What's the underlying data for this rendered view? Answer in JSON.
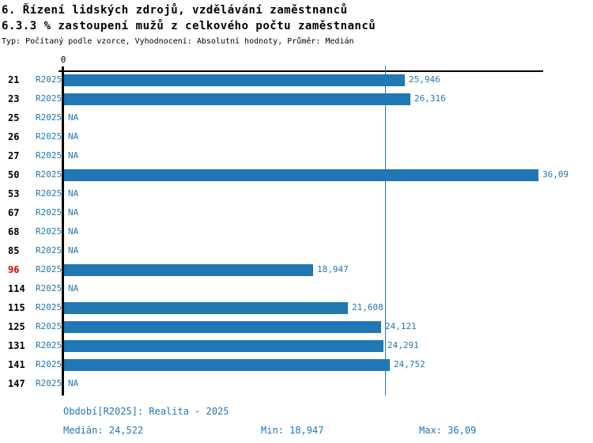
{
  "header": {
    "title": "6. Řízení lidských zdrojů, vzdělávání zaměstnanců",
    "subtitle": "6.3.3 % zastoupení mužů z celkového počtu zaměstnanců",
    "meta": "Typ: Počítaný podle vzorce, Vyhodnocení: Absolutní hodnoty, Průměr: Medián"
  },
  "chart_data": {
    "type": "bar",
    "orientation": "horizontal",
    "xlim": [
      0,
      36.09
    ],
    "x_tick_labels": [
      "0"
    ],
    "grid": false,
    "median_value": 24.522,
    "na_text": "NA",
    "series_name": "R2025",
    "bar_color": "#1f77b4",
    "text_blue": "#1f77b4",
    "highlight_color": "#dd0000",
    "rows": [
      {
        "id": "21",
        "period": "R2025",
        "value": 25.946,
        "label": "25,946",
        "highlight": false
      },
      {
        "id": "23",
        "period": "R2025",
        "value": 26.316,
        "label": "26,316",
        "highlight": false
      },
      {
        "id": "25",
        "period": "R2025",
        "value": null,
        "label": "NA",
        "highlight": false
      },
      {
        "id": "26",
        "period": "R2025",
        "value": null,
        "label": "NA",
        "highlight": false
      },
      {
        "id": "27",
        "period": "R2025",
        "value": null,
        "label": "NA",
        "highlight": false
      },
      {
        "id": "50",
        "period": "R2025",
        "value": 36.09,
        "label": "36,09",
        "highlight": false
      },
      {
        "id": "53",
        "period": "R2025",
        "value": null,
        "label": "NA",
        "highlight": false
      },
      {
        "id": "67",
        "period": "R2025",
        "value": null,
        "label": "NA",
        "highlight": false
      },
      {
        "id": "68",
        "period": "R2025",
        "value": null,
        "label": "NA",
        "highlight": false
      },
      {
        "id": "85",
        "period": "R2025",
        "value": null,
        "label": "NA",
        "highlight": false
      },
      {
        "id": "96",
        "period": "R2025",
        "value": 18.947,
        "label": "18,947",
        "highlight": true
      },
      {
        "id": "114",
        "period": "R2025",
        "value": null,
        "label": "NA",
        "highlight": false
      },
      {
        "id": "115",
        "period": "R2025",
        "value": 21.608,
        "label": "21,608",
        "highlight": false
      },
      {
        "id": "125",
        "period": "R2025",
        "value": 24.121,
        "label": "24,121",
        "highlight": false
      },
      {
        "id": "131",
        "period": "R2025",
        "value": 24.291,
        "label": "24,291",
        "highlight": false
      },
      {
        "id": "141",
        "period": "R2025",
        "value": 24.752,
        "label": "24,752",
        "highlight": false
      },
      {
        "id": "147",
        "period": "R2025",
        "value": null,
        "label": "NA",
        "highlight": false
      }
    ]
  },
  "footer": {
    "period": "Období[R2025]: Realita - 2025",
    "median": "Medián: 24,522",
    "min": "Min: 18,947",
    "max": "Max: 36,09"
  }
}
